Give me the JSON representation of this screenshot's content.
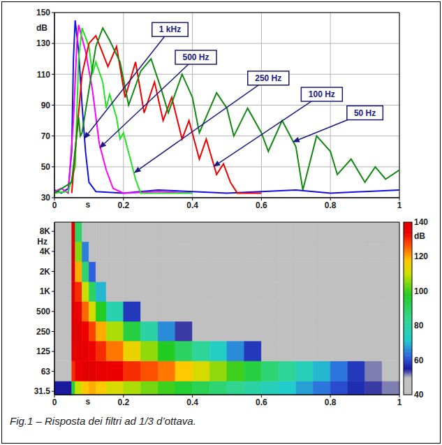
{
  "caption": "Fig.1 – Risposta dei filtri ad 1/3 d’ottava.",
  "chart_data": [
    {
      "type": "line",
      "xlabel": "s",
      "ylabel": "dB",
      "xlim": [
        0,
        1
      ],
      "xticks": [
        0,
        0.2,
        0.4,
        0.6,
        0.8,
        1
      ],
      "ylim": [
        30,
        150
      ],
      "yticks": [
        30,
        50,
        70,
        90,
        110,
        130,
        150
      ],
      "grid": true,
      "series": [
        {
          "name": "1 kHz",
          "color": "#1010e0",
          "x": [
            0,
            0.02,
            0.04,
            0.05,
            0.055,
            0.06,
            0.07,
            0.08,
            0.09,
            0.1,
            0.12,
            0.2,
            0.3,
            0.4,
            0.5,
            0.6,
            0.7,
            0.8,
            0.9,
            1
          ],
          "values": [
            35,
            33,
            36,
            60,
            120,
            145,
            125,
            90,
            60,
            40,
            34,
            33,
            35,
            34,
            33,
            34,
            35,
            33,
            34,
            35
          ],
          "label_at": [
            0.335,
            139
          ],
          "arrow_to": [
            0.085,
            68
          ]
        },
        {
          "name": "500 Hz",
          "color": "#ff00ff",
          "x": [
            0,
            0.02,
            0.04,
            0.055,
            0.065,
            0.07,
            0.09,
            0.11,
            0.13,
            0.15,
            0.17,
            0.2,
            0.3,
            0.4
          ],
          "values": [
            34,
            36,
            33,
            80,
            130,
            142,
            125,
            100,
            65,
            48,
            36,
            33,
            34,
            33
          ],
          "label_at": [
            0.41,
            121
          ],
          "arrow_to": [
            0.13,
            62
          ]
        },
        {
          "name": "250 Hz",
          "color": "#22e022",
          "x": [
            0,
            0.04,
            0.06,
            0.07,
            0.08,
            0.1,
            0.11,
            0.12,
            0.14,
            0.15,
            0.16,
            0.18,
            0.19,
            0.2,
            0.22,
            0.235,
            0.25,
            0.3,
            0.4
          ],
          "values": [
            33,
            34,
            50,
            120,
            140,
            128,
            110,
            118,
            105,
            88,
            97,
            82,
            68,
            72,
            55,
            42,
            33,
            33,
            33
          ],
          "label_at": [
            0.62,
            107.5
          ],
          "arrow_to": [
            0.23,
            46
          ]
        },
        {
          "name": "100 Hz",
          "color": "#ee0000",
          "x": [
            0.05,
            0.06,
            0.08,
            0.1,
            0.12,
            0.155,
            0.18,
            0.205,
            0.235,
            0.26,
            0.29,
            0.315,
            0.34,
            0.37,
            0.39,
            0.42,
            0.44,
            0.47,
            0.49,
            0.51,
            0.53,
            0.6
          ],
          "values": [
            33,
            60,
            110,
            130,
            135,
            115,
            128,
            95,
            118,
            85,
            105,
            80,
            95,
            68,
            80,
            55,
            68,
            45,
            52,
            40,
            33,
            33
          ],
          "label_at": [
            0.775,
            97
          ],
          "arrow_to": [
            0.46,
            50
          ]
        },
        {
          "name": "50 Hz",
          "color": "#118811",
          "x": [
            0,
            0.05,
            0.07,
            0.075,
            0.08,
            0.1,
            0.12,
            0.14,
            0.16,
            0.19,
            0.215,
            0.25,
            0.28,
            0.31,
            0.33,
            0.37,
            0.4,
            0.42,
            0.47,
            0.5,
            0.52,
            0.56,
            0.6,
            0.62,
            0.66,
            0.7,
            0.72,
            0.76,
            0.8,
            0.82,
            0.86,
            0.9,
            0.93,
            0.96,
            1
          ],
          "values": [
            33,
            40,
            82,
            70,
            72,
            100,
            128,
            140,
            132,
            118,
            90,
            112,
            120,
            100,
            85,
            110,
            95,
            72,
            98,
            88,
            70,
            88,
            72,
            60,
            80,
            63,
            35,
            70,
            60,
            45,
            55,
            40,
            50,
            42,
            48
          ],
          "label_at": [
            0.9,
            85
          ],
          "arrow_to": [
            0.69,
            66
          ]
        }
      ]
    },
    {
      "type": "heatmap",
      "xlabel": "s",
      "ylabel": "Hz",
      "log": "y",
      "grid": true,
      "xlim": [
        0,
        1
      ],
      "xticks": [
        0,
        0.2,
        0.4,
        0.6,
        0.8,
        1
      ],
      "ylim": [
        28,
        11000
      ],
      "yticks": [
        31.5,
        63,
        125,
        250,
        500,
        {
          "value": 1000,
          "label": "1K"
        },
        {
          "value": 2000,
          "label": "2K"
        },
        {
          "value": 4000,
          "label": "4K"
        },
        {
          "value": 8000,
          "label": "8K"
        }
      ],
      "x_edges": [
        0,
        0.05,
        0.06,
        0.08,
        0.1,
        0.12,
        0.15,
        0.2,
        0.25,
        0.3,
        0.35,
        0.4,
        0.45,
        0.5,
        0.55,
        0.6,
        0.65,
        0.7,
        0.75,
        0.8,
        0.85,
        0.9,
        0.95,
        1
      ],
      "y_edges": [
        28,
        45,
        90,
        180,
        355,
        710,
        1400,
        2800,
        5600,
        11000
      ],
      "cells": [
        [
          55,
          95,
          110,
          118,
          120,
          118,
          112,
          108,
          104,
          100,
          96,
          92,
          88,
          84,
          80,
          76,
          72,
          68,
          64,
          60,
          57,
          54,
          52
        ],
        [
          40,
          130,
          135,
          138,
          138,
          136,
          134,
          130,
          127,
          124,
          118,
          112,
          106,
          100,
          94,
          88,
          82,
          76,
          70,
          64,
          58,
          52,
          48
        ],
        [
          40,
          138,
          138,
          136,
          134,
          130,
          124,
          115,
          106,
          98,
          90,
          82,
          74,
          66,
          58,
          50,
          44,
          40,
          40,
          40,
          40,
          40,
          40
        ],
        [
          40,
          140,
          138,
          134,
          128,
          120,
          108,
          94,
          80,
          66,
          54,
          44,
          40,
          40,
          40,
          40,
          40,
          40,
          40,
          40,
          40,
          40,
          40
        ],
        [
          40,
          140,
          135,
          125,
          112,
          98,
          78,
          58,
          44,
          40,
          40,
          40,
          40,
          40,
          40,
          40,
          40,
          40,
          40,
          40,
          40,
          40,
          40
        ],
        [
          40,
          140,
          130,
          110,
          90,
          70,
          50,
          40,
          40,
          40,
          40,
          40,
          40,
          40,
          40,
          40,
          40,
          40,
          40,
          40,
          40,
          40,
          40
        ],
        [
          40,
          140,
          120,
          88,
          62,
          45,
          40,
          40,
          40,
          40,
          40,
          40,
          40,
          40,
          40,
          40,
          40,
          40,
          40,
          40,
          40,
          40,
          40
        ],
        [
          40,
          140,
          105,
          65,
          42,
          40,
          40,
          40,
          40,
          40,
          40,
          40,
          40,
          40,
          40,
          40,
          40,
          40,
          40,
          40,
          40,
          40,
          40
        ],
        [
          40,
          140,
          90,
          50,
          40,
          40,
          40,
          40,
          40,
          40,
          40,
          40,
          40,
          40,
          40,
          40,
          40,
          40,
          40,
          40,
          40,
          40,
          40
        ]
      ],
      "colorbar": {
        "range": [
          40,
          140
        ],
        "ticks": [
          40,
          60,
          80,
          100,
          120,
          140
        ],
        "label": "dB"
      }
    }
  ]
}
